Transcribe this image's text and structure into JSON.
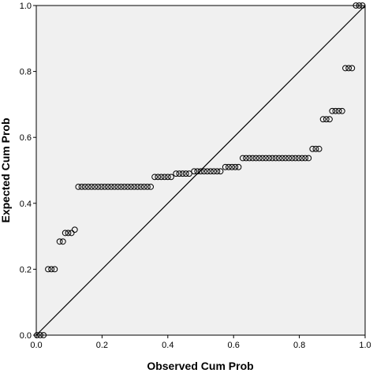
{
  "chart_data": {
    "type": "scatter",
    "title": "",
    "xlabel": "Observed Cum Prob",
    "ylabel": "Expected Cum Prob",
    "xlim": [
      0,
      1
    ],
    "ylim": [
      0,
      1
    ],
    "x_ticks": [
      "0.0",
      "0.2",
      "0.4",
      "0.6",
      "0.8",
      "1.0"
    ],
    "y_ticks": [
      "0.0",
      "0.2",
      "0.4",
      "0.6",
      "0.8",
      "1.0"
    ],
    "grid": false,
    "reference_line": "diagonal y = x",
    "colors": {
      "background": "#f0f0f0",
      "marker": "#000000"
    },
    "series": [
      {
        "points": [
          [
            0.002,
            0.0
          ],
          [
            0.012,
            0.0
          ],
          [
            0.022,
            0.0
          ],
          [
            0.036,
            0.2
          ],
          [
            0.046,
            0.2
          ],
          [
            0.056,
            0.2
          ],
          [
            0.071,
            0.284
          ],
          [
            0.081,
            0.284
          ],
          [
            0.088,
            0.31
          ],
          [
            0.097,
            0.31
          ],
          [
            0.107,
            0.31
          ],
          [
            0.117,
            0.32
          ],
          [
            0.128,
            0.45
          ],
          [
            0.138,
            0.45
          ],
          [
            0.148,
            0.45
          ],
          [
            0.158,
            0.45
          ],
          [
            0.168,
            0.45
          ],
          [
            0.178,
            0.45
          ],
          [
            0.188,
            0.45
          ],
          [
            0.198,
            0.45
          ],
          [
            0.208,
            0.45
          ],
          [
            0.218,
            0.45
          ],
          [
            0.228,
            0.45
          ],
          [
            0.238,
            0.45
          ],
          [
            0.248,
            0.45
          ],
          [
            0.258,
            0.45
          ],
          [
            0.268,
            0.45
          ],
          [
            0.278,
            0.45
          ],
          [
            0.288,
            0.45
          ],
          [
            0.298,
            0.45
          ],
          [
            0.308,
            0.45
          ],
          [
            0.318,
            0.45
          ],
          [
            0.328,
            0.45
          ],
          [
            0.338,
            0.45
          ],
          [
            0.348,
            0.45
          ],
          [
            0.36,
            0.48
          ],
          [
            0.37,
            0.48
          ],
          [
            0.38,
            0.48
          ],
          [
            0.39,
            0.48
          ],
          [
            0.4,
            0.48
          ],
          [
            0.41,
            0.48
          ],
          [
            0.425,
            0.49
          ],
          [
            0.435,
            0.49
          ],
          [
            0.445,
            0.49
          ],
          [
            0.455,
            0.49
          ],
          [
            0.465,
            0.49
          ],
          [
            0.48,
            0.497
          ],
          [
            0.49,
            0.497
          ],
          [
            0.5,
            0.497
          ],
          [
            0.51,
            0.497
          ],
          [
            0.52,
            0.497
          ],
          [
            0.53,
            0.497
          ],
          [
            0.54,
            0.497
          ],
          [
            0.55,
            0.497
          ],
          [
            0.56,
            0.497
          ],
          [
            0.575,
            0.51
          ],
          [
            0.585,
            0.51
          ],
          [
            0.595,
            0.51
          ],
          [
            0.605,
            0.51
          ],
          [
            0.615,
            0.51
          ],
          [
            0.628,
            0.537
          ],
          [
            0.638,
            0.537
          ],
          [
            0.648,
            0.537
          ],
          [
            0.658,
            0.537
          ],
          [
            0.668,
            0.537
          ],
          [
            0.678,
            0.537
          ],
          [
            0.688,
            0.537
          ],
          [
            0.698,
            0.537
          ],
          [
            0.708,
            0.537
          ],
          [
            0.718,
            0.537
          ],
          [
            0.728,
            0.537
          ],
          [
            0.738,
            0.537
          ],
          [
            0.748,
            0.537
          ],
          [
            0.758,
            0.537
          ],
          [
            0.768,
            0.537
          ],
          [
            0.778,
            0.537
          ],
          [
            0.788,
            0.537
          ],
          [
            0.798,
            0.537
          ],
          [
            0.808,
            0.537
          ],
          [
            0.818,
            0.537
          ],
          [
            0.828,
            0.537
          ],
          [
            0.84,
            0.565
          ],
          [
            0.85,
            0.565
          ],
          [
            0.86,
            0.565
          ],
          [
            0.872,
            0.655
          ],
          [
            0.882,
            0.655
          ],
          [
            0.892,
            0.655
          ],
          [
            0.9,
            0.68
          ],
          [
            0.91,
            0.68
          ],
          [
            0.92,
            0.68
          ],
          [
            0.93,
            0.68
          ],
          [
            0.94,
            0.81
          ],
          [
            0.95,
            0.81
          ],
          [
            0.96,
            0.81
          ],
          [
            0.972,
            1.0
          ],
          [
            0.982,
            1.0
          ],
          [
            0.992,
            1.0
          ]
        ]
      }
    ]
  }
}
